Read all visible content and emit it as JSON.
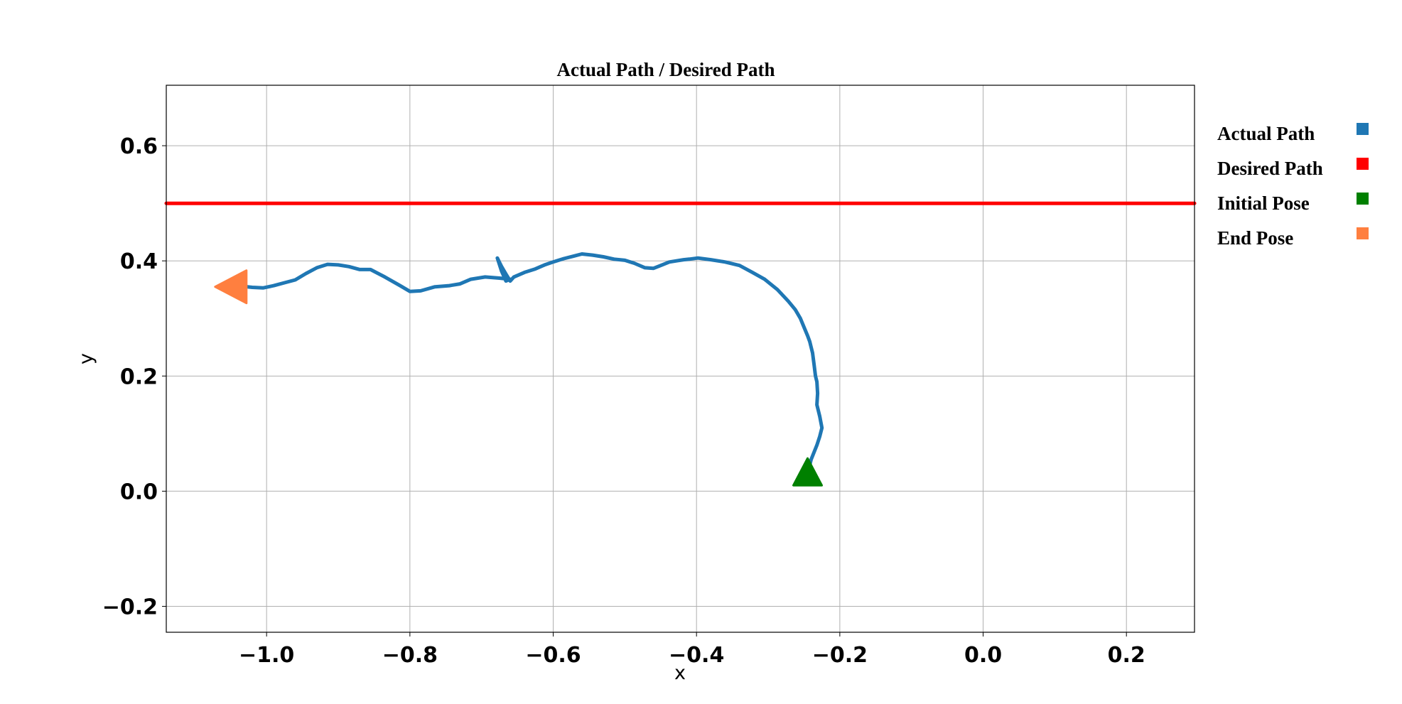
{
  "chart_data": {
    "type": "line",
    "title": "Actual Path / Desired Path",
    "xlabel": "x",
    "ylabel": "y",
    "xlim": [
      -1.14,
      0.295
    ],
    "ylim": [
      -0.245,
      0.705
    ],
    "xticks": [
      -1.0,
      -0.8,
      -0.6,
      -0.4,
      -0.2,
      0.0,
      0.2
    ],
    "xtick_labels": [
      "−1.0",
      "−0.8",
      "−0.6",
      "−0.4",
      "−0.2",
      "0.0",
      "0.2"
    ],
    "yticks": [
      -0.2,
      0.0,
      0.2,
      0.4,
      0.6
    ],
    "ytick_labels": [
      "−0.2",
      "0.0",
      "0.2",
      "0.4",
      "0.6"
    ],
    "grid": true,
    "legend_placement": "outside-right",
    "legend": [
      {
        "label": "Actual Path",
        "color": "#1f77b4"
      },
      {
        "label": "Desired Path",
        "color": "#ff0000"
      },
      {
        "label": "Initial Pose",
        "color": "#008000"
      },
      {
        "label": "End Pose",
        "color": "#ff7f3f"
      }
    ],
    "series": [
      {
        "name": "Actual Path",
        "color": "#1f77b4",
        "x": [
          -0.245,
          -0.24,
          -0.232,
          -0.228,
          -0.225,
          -0.228,
          -0.232,
          -0.231,
          -0.232,
          -0.234,
          -0.236,
          -0.238,
          -0.24,
          -0.242,
          -0.245,
          -0.25,
          -0.255,
          -0.262,
          -0.272,
          -0.287,
          -0.305,
          -0.322,
          -0.34,
          -0.36,
          -0.38,
          -0.398,
          -0.41,
          -0.418,
          -0.428,
          -0.438,
          -0.45,
          -0.46,
          -0.472,
          -0.487,
          -0.5,
          -0.515,
          -0.53,
          -0.545,
          -0.56,
          -0.572,
          -0.585,
          -0.6,
          -0.612,
          -0.625,
          -0.64,
          -0.655,
          -0.66,
          -0.665,
          -0.672,
          -0.678,
          -0.672,
          -0.666,
          -0.66,
          -0.675,
          -0.695,
          -0.715,
          -0.73,
          -0.745,
          -0.765,
          -0.785,
          -0.8,
          -0.815,
          -0.835,
          -0.855,
          -0.87,
          -0.885,
          -0.9,
          -0.915,
          -0.93,
          -0.945,
          -0.96,
          -0.975,
          -0.99,
          -1.005,
          -1.02,
          -1.035
        ],
        "y": [
          0.03,
          0.055,
          0.08,
          0.095,
          0.11,
          0.13,
          0.15,
          0.17,
          0.19,
          0.2,
          0.22,
          0.24,
          0.25,
          0.26,
          0.27,
          0.285,
          0.3,
          0.315,
          0.33,
          0.35,
          0.368,
          0.38,
          0.392,
          0.398,
          0.402,
          0.405,
          0.403,
          0.402,
          0.4,
          0.398,
          0.392,
          0.387,
          0.388,
          0.396,
          0.401,
          0.403,
          0.407,
          0.41,
          0.412,
          0.408,
          0.404,
          0.398,
          0.393,
          0.386,
          0.38,
          0.372,
          0.365,
          0.375,
          0.39,
          0.405,
          0.382,
          0.365,
          0.368,
          0.37,
          0.372,
          0.368,
          0.36,
          0.357,
          0.355,
          0.348,
          0.347,
          0.358,
          0.372,
          0.385,
          0.385,
          0.39,
          0.393,
          0.394,
          0.388,
          0.378,
          0.367,
          0.362,
          0.357,
          0.353,
          0.354,
          0.356
        ]
      },
      {
        "name": "Desired Path",
        "color": "#ff0000",
        "x": [
          -1.14,
          0.295
        ],
        "y": [
          0.5,
          0.5
        ]
      }
    ],
    "markers": [
      {
        "name": "Initial Pose",
        "x": -0.245,
        "y": 0.02,
        "shape": "triangle-up",
        "color": "#008000"
      },
      {
        "name": "End Pose",
        "x": -1.05,
        "y": 0.355,
        "shape": "triangle-left",
        "color": "#ff7f3f"
      }
    ]
  }
}
